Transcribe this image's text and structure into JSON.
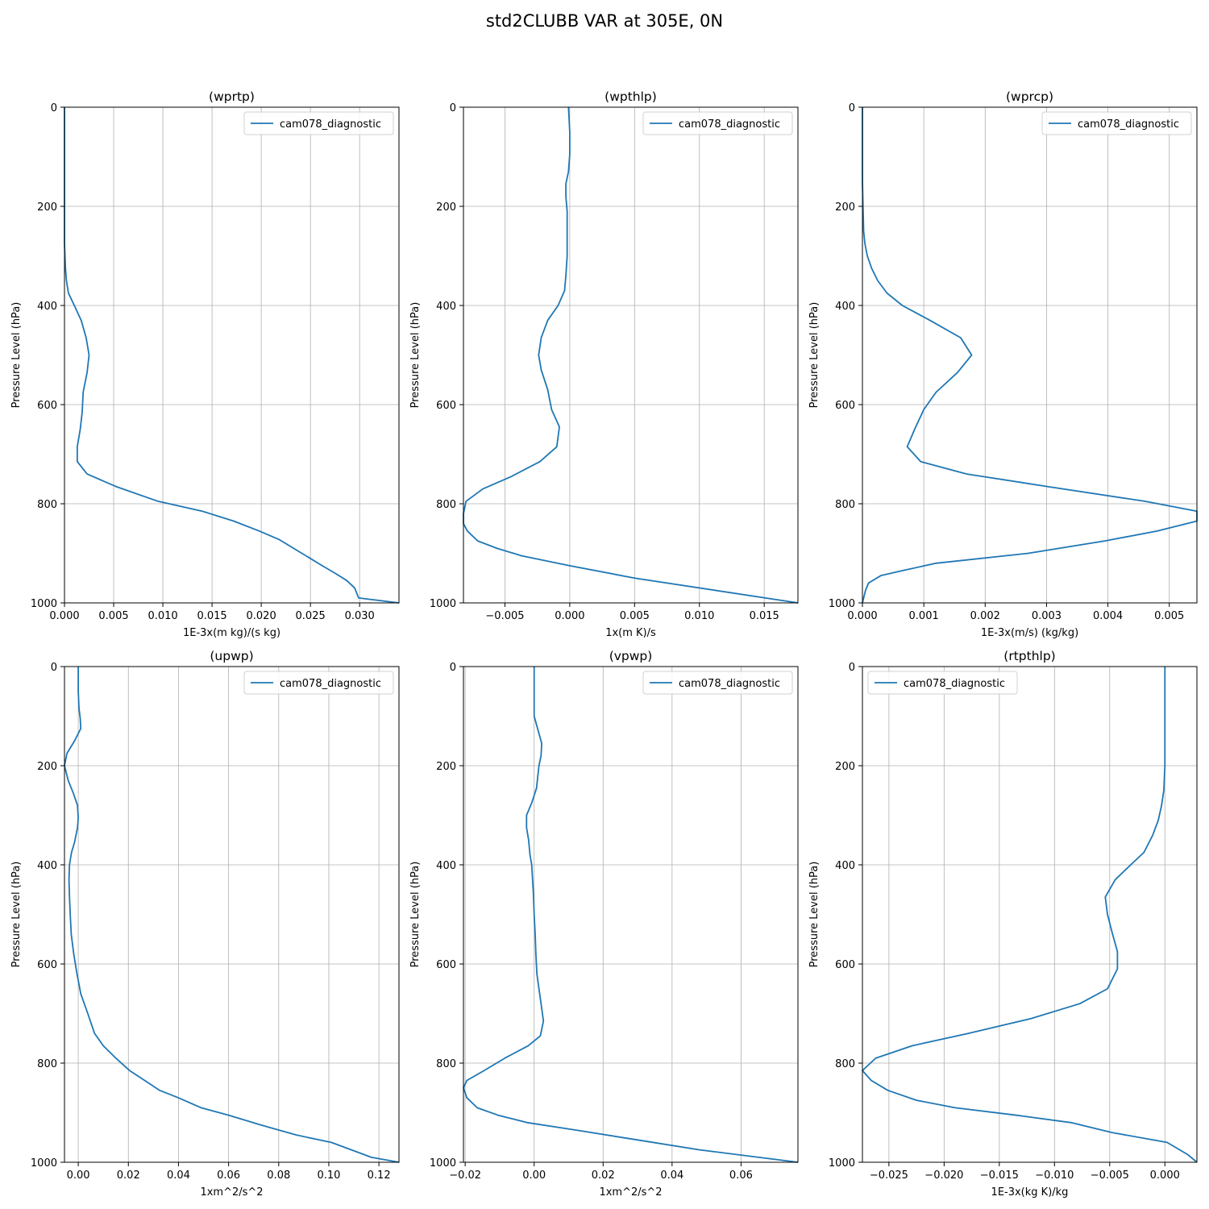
{
  "figure": {
    "suptitle": "std2CLUBB VAR at 305E, 0N",
    "line_color": "#1f77b4",
    "grid_color": "#b0b0b0"
  },
  "chart_data": [
    {
      "type": "line",
      "title": "(wprtp)",
      "xlabel": "1E-3x(m kg)/(s kg)",
      "ylabel": "Pressure Level (hPa)",
      "xlim": [
        0,
        0.034
      ],
      "ylim": [
        1000,
        0
      ],
      "xticks": [
        0,
        0.005,
        0.01,
        0.015,
        0.02,
        0.025,
        0.03
      ],
      "xtick_labels": [
        "0.000",
        "0.005",
        "0.010",
        "0.015",
        "0.020",
        "0.025",
        "0.030"
      ],
      "yticks": [
        0,
        200,
        400,
        600,
        800,
        1000
      ],
      "ytick_labels": [
        "0",
        "200",
        "400",
        "600",
        "800",
        "1000"
      ],
      "grid": true,
      "legend_loc": "upper right",
      "series": [
        {
          "name": "cam078_diagnostic",
          "x": [
            0,
            0,
            0,
            0,
            0,
            0.0001,
            0.0002,
            0.0004,
            0.001,
            0.0017,
            0.0022,
            0.0025,
            0.0023,
            0.0019,
            0.0018,
            0.0016,
            0.0013,
            0.0013,
            0.0023,
            0.0052,
            0.0095,
            0.014,
            0.0172,
            0.0198,
            0.0218,
            0.0233,
            0.0248,
            0.0262,
            0.0275,
            0.0287,
            0.0295,
            0.0299,
            0.034
          ],
          "y": [
            0,
            100,
            150,
            200,
            275,
            325,
            350,
            375,
            400,
            430,
            465,
            500,
            535,
            575,
            615,
            650,
            685,
            715,
            740,
            765,
            795,
            815,
            835,
            855,
            872,
            890,
            908,
            925,
            940,
            955,
            970,
            990,
            1000
          ]
        }
      ]
    },
    {
      "type": "line",
      "title": "(wpthlp)",
      "xlabel": "1x(m K)/s",
      "ylabel": "Pressure Level (hPa)",
      "xlim": [
        -0.0082,
        0.0176
      ],
      "ylim": [
        1000,
        0
      ],
      "xticks": [
        -0.005,
        0.0,
        0.005,
        0.01,
        0.015
      ],
      "xtick_labels": [
        "−0.005",
        "0.000",
        "0.005",
        "0.010",
        "0.015"
      ],
      "yticks": [
        0,
        200,
        400,
        600,
        800,
        1000
      ],
      "ytick_labels": [
        "0",
        "200",
        "400",
        "600",
        "800",
        "1000"
      ],
      "grid": true,
      "legend_loc": "upper right",
      "series": [
        {
          "name": "cam078_diagnostic",
          "x": [
            -0.0001,
            0,
            0,
            -0.0001,
            -0.0003,
            -0.0003,
            -0.0002,
            -0.0002,
            -0.0002,
            -0.0003,
            -0.0004,
            -0.0009,
            -0.0017,
            -0.0022,
            -0.0024,
            -0.0022,
            -0.0017,
            -0.0014,
            -0.0008,
            -0.001,
            -0.0023,
            -0.0045,
            -0.0067,
            -0.008,
            -0.0082,
            -0.0082,
            -0.0079,
            -0.0071,
            -0.0056,
            -0.0037,
            0,
            0.005,
            0.0176
          ],
          "y": [
            0,
            50,
            95,
            130,
            155,
            180,
            210,
            250,
            300,
            340,
            370,
            400,
            430,
            465,
            500,
            530,
            570,
            610,
            645,
            685,
            715,
            745,
            770,
            795,
            820,
            840,
            855,
            875,
            890,
            905,
            925,
            950,
            1000
          ]
        }
      ]
    },
    {
      "type": "line",
      "title": "(wprcp)",
      "xlabel": "1E-3x(m/s) (kg/kg)",
      "ylabel": "Pressure Level (hPa)",
      "xlim": [
        0,
        0.00545
      ],
      "ylim": [
        1000,
        0
      ],
      "xticks": [
        0,
        0.001,
        0.002,
        0.003,
        0.004,
        0.005
      ],
      "xtick_labels": [
        "0.000",
        "0.001",
        "0.002",
        "0.003",
        "0.004",
        "0.005"
      ],
      "yticks": [
        0,
        200,
        400,
        600,
        800,
        1000
      ],
      "ytick_labels": [
        "0",
        "200",
        "400",
        "600",
        "800",
        "1000"
      ],
      "grid": true,
      "legend_loc": "upper right",
      "series": [
        {
          "name": "cam078_diagnostic",
          "x": [
            0,
            0,
            1e-05,
            2e-05,
            4e-05,
            8e-05,
            0.00015,
            0.00025,
            0.0004,
            0.00065,
            0.0011,
            0.0016,
            0.00178,
            0.00155,
            0.0012,
            0.001,
            0.00085,
            0.00073,
            0.00095,
            0.0017,
            0.003,
            0.0046,
            0.00545,
            0.00545,
            0.0048,
            0.00395,
            0.0027,
            0.0012,
            0.00065,
            0.0003,
            0.0001,
            5e-05,
            0
          ],
          "y": [
            0,
            150,
            200,
            250,
            275,
            300,
            325,
            350,
            375,
            400,
            430,
            465,
            500,
            535,
            575,
            610,
            650,
            685,
            715,
            740,
            765,
            795,
            815,
            835,
            855,
            875,
            900,
            920,
            935,
            945,
            960,
            975,
            1000
          ]
        }
      ]
    },
    {
      "type": "line",
      "title": "(upwp)",
      "xlabel": "1xm^2/s^2",
      "ylabel": "Pressure Level (hPa)",
      "xlim": [
        -0.0055,
        0.128
      ],
      "ylim": [
        1000,
        0
      ],
      "xticks": [
        0,
        0.02,
        0.04,
        0.06,
        0.08,
        0.1,
        0.12
      ],
      "xtick_labels": [
        "0.00",
        "0.02",
        "0.04",
        "0.06",
        "0.08",
        "0.10",
        "0.12"
      ],
      "yticks": [
        0,
        200,
        400,
        600,
        800,
        1000
      ],
      "ytick_labels": [
        "0",
        "200",
        "400",
        "600",
        "800",
        "1000"
      ],
      "grid": true,
      "legend_loc": "upper right",
      "series": [
        {
          "name": "cam078_diagnostic",
          "x": [
            0,
            0,
            0.0003,
            0.0008,
            0.001,
            -0.0015,
            -0.0045,
            -0.0055,
            -0.004,
            -0.002,
            -0.0003,
            0,
            -0.0003,
            -0.0015,
            -0.0027,
            -0.0035,
            -0.0037,
            -0.0035,
            -0.0032,
            -0.0028,
            -0.0018,
            -0.0005,
            0.001,
            0.0038,
            0.0065,
            0.01,
            0.015,
            0.0205,
            0.0265,
            0.0325,
            0.04,
            0.049,
            0.06,
            0.073,
            0.087,
            0.101,
            0.117,
            0.128
          ],
          "y": [
            0,
            50,
            85,
            105,
            125,
            150,
            175,
            200,
            230,
            255,
            280,
            305,
            325,
            355,
            375,
            400,
            430,
            465,
            500,
            540,
            580,
            620,
            660,
            700,
            740,
            765,
            790,
            815,
            835,
            855,
            870,
            890,
            905,
            925,
            945,
            960,
            990,
            1000
          ]
        }
      ]
    },
    {
      "type": "line",
      "title": "(vpwp)",
      "xlabel": "1xm^2/s^2",
      "ylabel": "Pressure Level (hPa)",
      "xlim": [
        -0.0205,
        0.0765
      ],
      "ylim": [
        1000,
        0
      ],
      "xticks": [
        -0.02,
        0,
        0.02,
        0.04,
        0.06
      ],
      "xtick_labels": [
        "−0.02",
        "0.00",
        "0.02",
        "0.04",
        "0.06"
      ],
      "yticks": [
        0,
        200,
        400,
        600,
        800,
        1000
      ],
      "ytick_labels": [
        "0",
        "200",
        "400",
        "600",
        "800",
        "1000"
      ],
      "grid": true,
      "legend_loc": "upper right",
      "series": [
        {
          "name": "cam078_diagnostic",
          "x": [
            0,
            0,
            0,
            0.001,
            0.0022,
            0.002,
            0.0014,
            0.001,
            0.0007,
            -0.0007,
            -0.0022,
            -0.0022,
            -0.0016,
            -0.0012,
            -0.0007,
            -0.0005,
            -0.0002,
            0,
            0.0003,
            0.0005,
            0.0008,
            0.0015,
            0.0027,
            0.0018,
            -0.0017,
            -0.0085,
            -0.0145,
            -0.0195,
            -0.0205,
            -0.0195,
            -0.0165,
            -0.0105,
            -0.002,
            0.012,
            0.03,
            0.048,
            0.0765
          ],
          "y": [
            0,
            50,
            100,
            125,
            155,
            180,
            200,
            225,
            245,
            275,
            300,
            325,
            350,
            380,
            400,
            425,
            460,
            500,
            540,
            580,
            620,
            655,
            715,
            745,
            765,
            790,
            815,
            835,
            850,
            870,
            890,
            905,
            920,
            935,
            955,
            975,
            1000
          ]
        }
      ]
    },
    {
      "type": "line",
      "title": "(rtpthlp)",
      "xlabel": "1E-3x(kg K)/kg",
      "ylabel": "Pressure Level (hPa)",
      "xlim": [
        -0.0274,
        0.0029
      ],
      "ylim": [
        1000,
        0
      ],
      "xticks": [
        -0.025,
        -0.02,
        -0.015,
        -0.01,
        -0.005,
        0
      ],
      "xtick_labels": [
        "−0.025",
        "−0.020",
        "−0.015",
        "−0.010",
        "−0.005",
        "0.000"
      ],
      "yticks": [
        0,
        200,
        400,
        600,
        800,
        1000
      ],
      "ytick_labels": [
        "0",
        "200",
        "400",
        "600",
        "800",
        "1000"
      ],
      "grid": true,
      "legend_loc": "upper left",
      "series": [
        {
          "name": "cam078_diagnostic",
          "x": [
            0,
            0,
            -0.0001,
            -0.0003,
            -0.0006,
            -0.0011,
            -0.0019,
            -0.0031,
            -0.0045,
            -0.0054,
            -0.0052,
            -0.0048,
            -0.0043,
            -0.0043,
            -0.0052,
            -0.0077,
            -0.0121,
            -0.0178,
            -0.0229,
            -0.0262,
            -0.0274,
            -0.0266,
            -0.0251,
            -0.0225,
            -0.019,
            -0.0135,
            -0.0085,
            -0.0048,
            0.0002,
            0.0021,
            0.0029
          ],
          "y": [
            0,
            200,
            250,
            280,
            310,
            340,
            375,
            400,
            430,
            465,
            500,
            535,
            575,
            610,
            650,
            680,
            710,
            740,
            765,
            790,
            815,
            835,
            855,
            875,
            890,
            905,
            920,
            940,
            960,
            985,
            1000
          ]
        }
      ]
    }
  ]
}
